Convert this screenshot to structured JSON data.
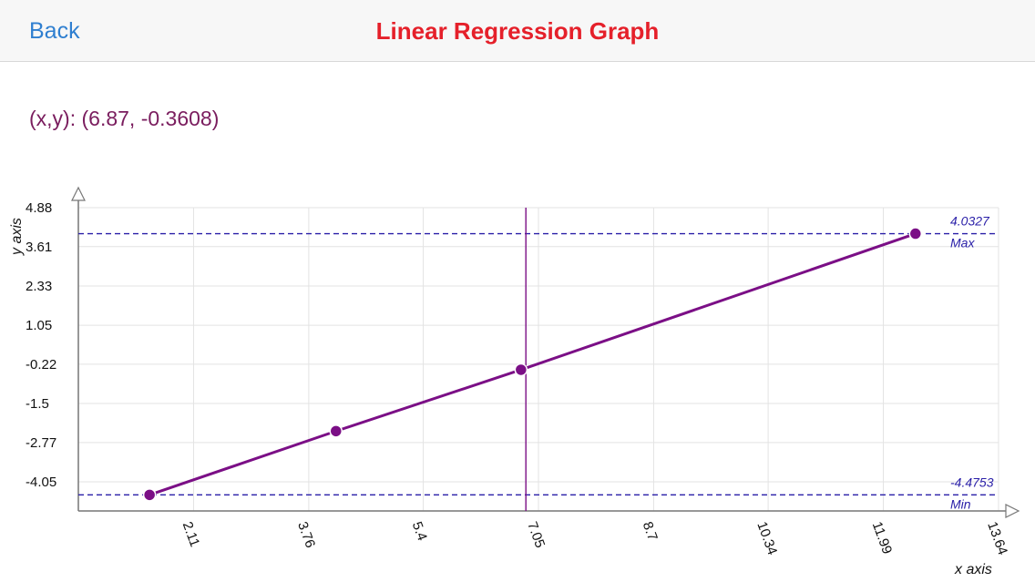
{
  "navbar": {
    "back_label": "Back",
    "title": "Linear Regression Graph"
  },
  "readout": {
    "label": "(x,y): (6.87, -0.3608)"
  },
  "colors": {
    "back": "#2f7fd0",
    "title": "#e5202a",
    "readout": "#7a1d5e",
    "series": "#7b0f86",
    "limit": "#2a1fa8",
    "cursor": "#7b0f86",
    "grid": "#e3e3e3"
  },
  "chart_data": {
    "type": "line",
    "xlabel": "x axis",
    "ylabel": "y axis",
    "xlim": [
      0.46,
      13.64
    ],
    "ylim": [
      -5.0,
      4.88
    ],
    "x_ticks": [
      "2.11",
      "3.76",
      "5.4",
      "7.05",
      "8.7",
      "10.34",
      "11.99",
      "13.64"
    ],
    "y_ticks": [
      "4.88",
      "3.61",
      "2.33",
      "1.05",
      "-0.22",
      "-1.5",
      "-2.77",
      "-4.05"
    ],
    "grid": true,
    "series": [
      {
        "points": [
          {
            "x": 1.48,
            "y": -4.4753
          },
          {
            "x": 4.15,
            "y": -2.4
          },
          {
            "x": 6.8,
            "y": -0.4
          },
          {
            "x": 12.45,
            "y": 4.0327
          }
        ]
      }
    ],
    "limits": [
      {
        "name": "Max",
        "value": 4.0327,
        "label": "4.0327"
      },
      {
        "name": "Min",
        "value": -4.4753,
        "label": "-4.4753"
      }
    ],
    "cursor_x": 6.87
  }
}
